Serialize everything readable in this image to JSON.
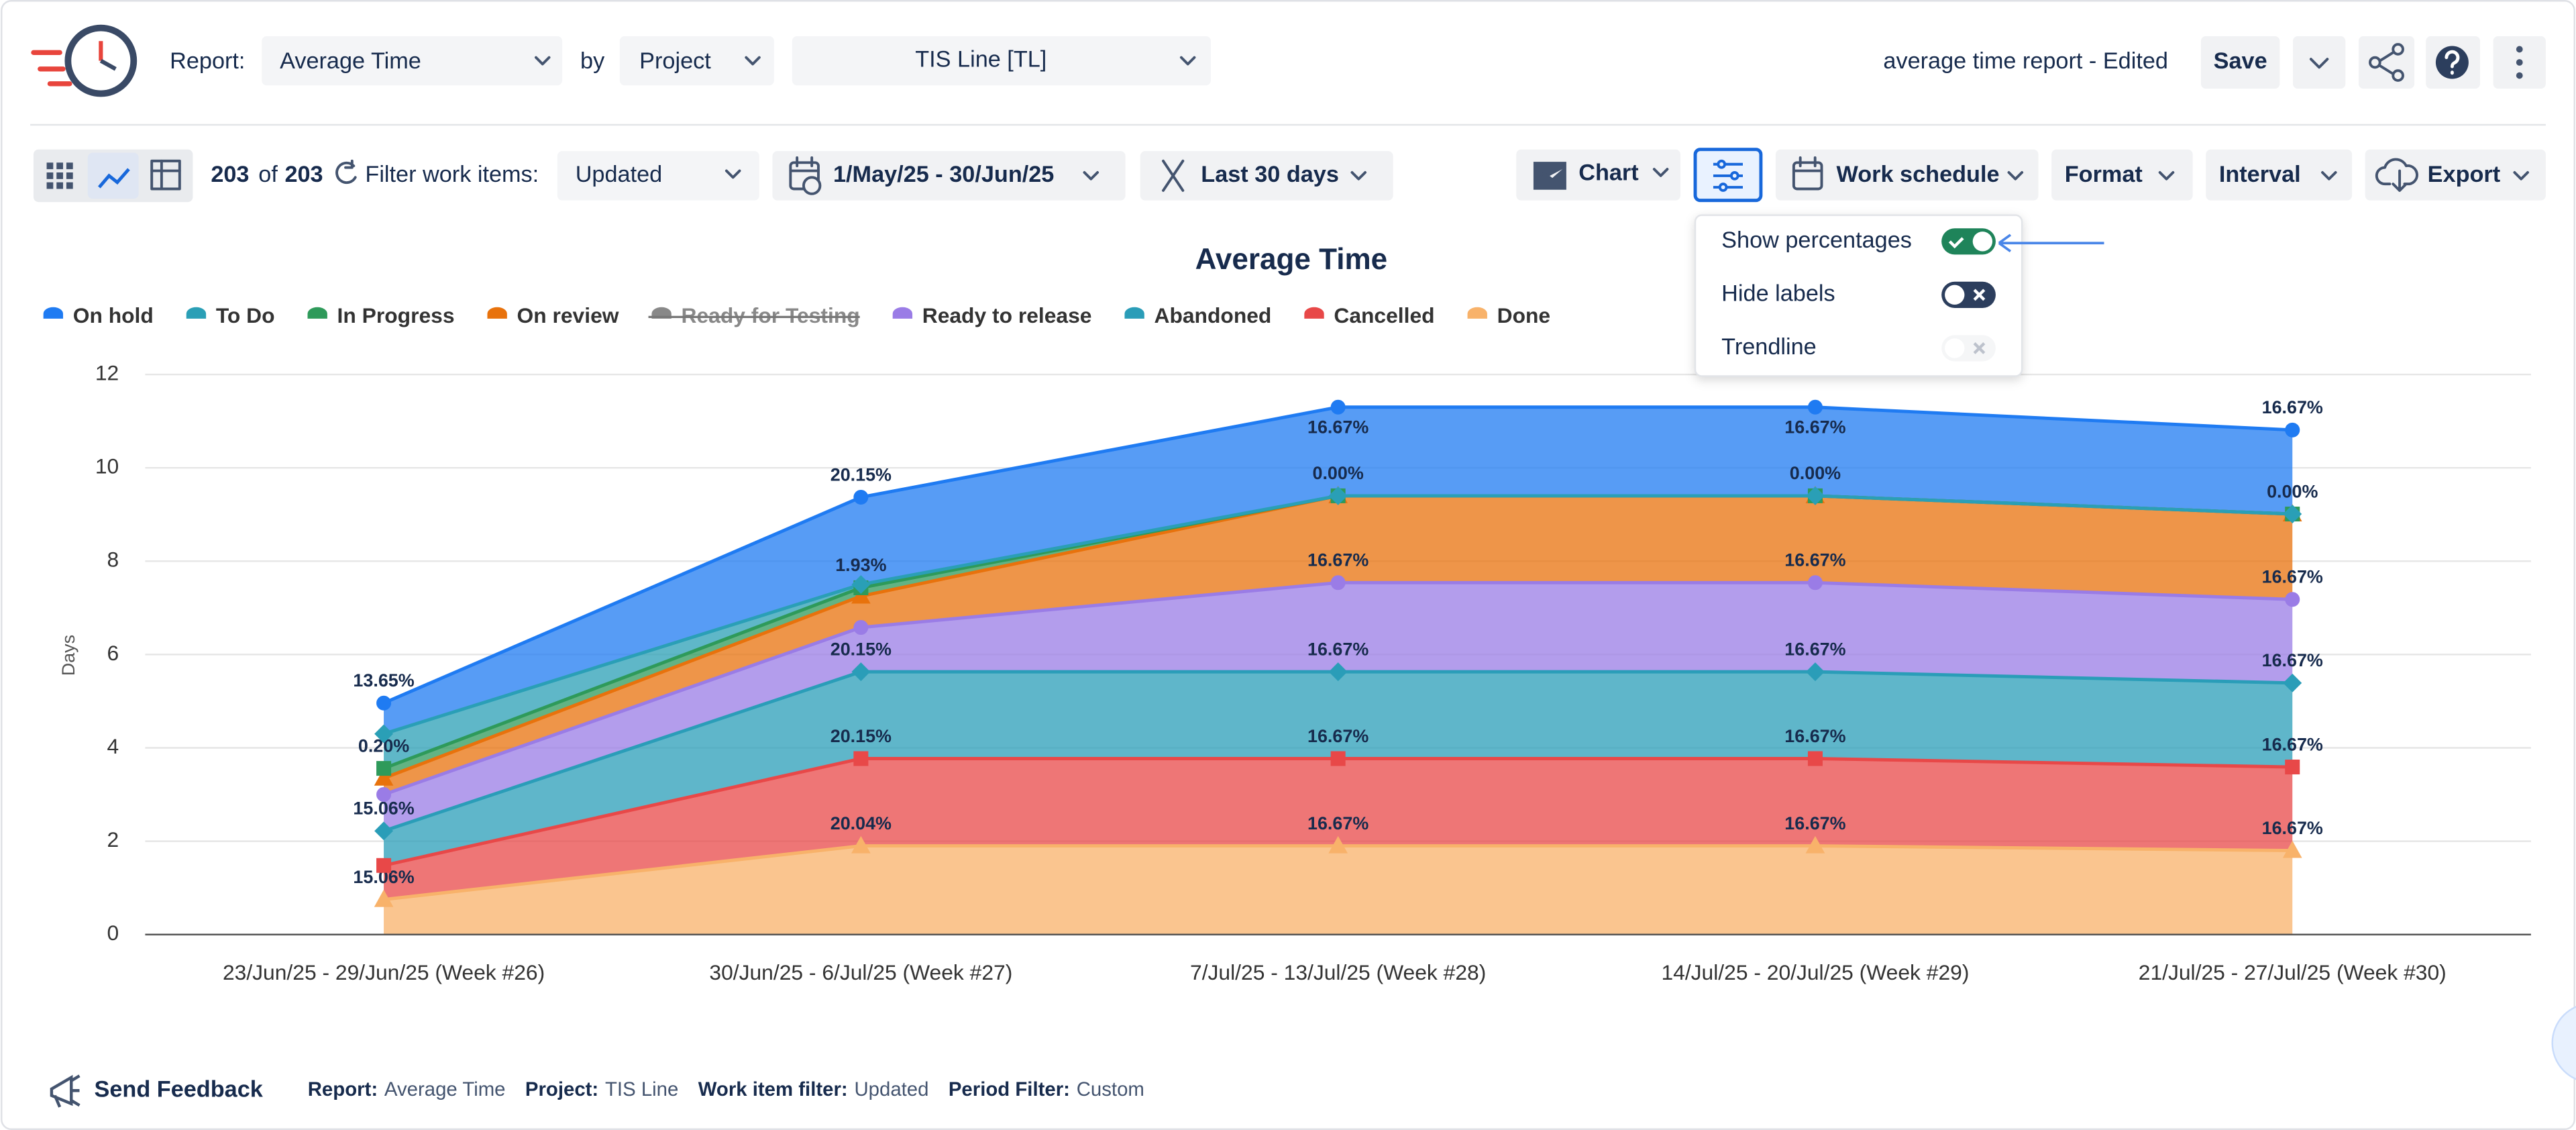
{
  "header": {
    "report_label": "Report:",
    "report": "Average Time",
    "by": "by",
    "group": "Project",
    "project": "TIS Line [TL]",
    "report_name": "average time report - Edited",
    "save": "Save"
  },
  "toolbar": {
    "count": "203",
    "of": "of",
    "total": "203",
    "filter_label": "Filter work items:",
    "filter": "Updated",
    "date_range": "1/May/25 - 30/Jun/25",
    "period": "Last 30 days",
    "chart": "Chart",
    "work_schedule": "Work schedule",
    "format": "Format",
    "interval": "Interval",
    "export": "Export"
  },
  "settings": {
    "items": [
      {
        "label": "Show percentages",
        "on": true,
        "enabled": true
      },
      {
        "label": "Hide labels",
        "on": false,
        "enabled": true
      },
      {
        "label": "Trendline",
        "on": false,
        "enabled": false
      }
    ]
  },
  "footer": {
    "feedback": "Send Feedback",
    "fields": [
      {
        "label": "Report:",
        "value": "Average Time"
      },
      {
        "label": "Project:",
        "value": "TIS Line"
      },
      {
        "label": "Work item filter:",
        "value": "Updated"
      },
      {
        "label": "Period Filter:",
        "value": "Custom"
      }
    ]
  },
  "chart_data": {
    "type": "area",
    "stacked": true,
    "title": "Average Time",
    "y_label": "Days",
    "categories": [
      "23/Jun/25 - 29/Jun/25 (Week #26)",
      "30/Jun/25 - 6/Jul/25 (Week #27)",
      "7/Jul/25 - 13/Jul/25 (Week #28)",
      "14/Jul/25 - 20/Jul/25 (Week #29)",
      "21/Jul/25 - 27/Jul/25 (Week #30)"
    ],
    "ylim": [
      0,
      12
    ],
    "yticks": [
      0,
      2,
      4,
      6,
      8,
      10,
      12
    ],
    "grid": true,
    "legend": "top-left",
    "series": [
      {
        "name": "On hold",
        "color": "#1f7bf2",
        "marker": "circle",
        "values": [
          0.66,
          1.87,
          1.9,
          1.9,
          1.8
        ],
        "percent_labels": [
          "13.65%",
          "20.15%",
          "16.67%",
          "16.67%",
          "16.67%"
        ]
      },
      {
        "name": "To Do",
        "color": "#2a9fb6",
        "marker": "diamond",
        "values": [
          0.74,
          0.07,
          0,
          0,
          0
        ],
        "percent_labels": [
          null,
          null,
          null,
          null,
          null
        ]
      },
      {
        "name": "In Progress",
        "color": "#2e9a5a",
        "marker": "square",
        "values": [
          0.21,
          0.18,
          0,
          0,
          0
        ],
        "percent_labels": [
          "0.20%",
          "1.93%",
          "0.00%",
          "0.00%",
          "0.00%"
        ]
      },
      {
        "name": "On review",
        "color": "#e8720c",
        "marker": "triangle",
        "values": [
          0.35,
          0.67,
          1.86,
          1.86,
          1.83
        ],
        "percent_labels": [
          null,
          null,
          null,
          null,
          null
        ]
      },
      {
        "name": "Ready for Testing",
        "color": "#666666",
        "marker": "square",
        "hidden": true,
        "values": [
          null,
          null,
          null,
          null,
          null
        ],
        "percent_labels": [
          null,
          null,
          null,
          null,
          null
        ]
      },
      {
        "name": "Ready to release",
        "color": "#9a7ce6",
        "marker": "circle",
        "values": [
          0.78,
          0.95,
          1.91,
          1.91,
          1.79
        ],
        "percent_labels": [
          null,
          null,
          "16.67%",
          "16.67%",
          "16.67%"
        ]
      },
      {
        "name": "Abandoned",
        "color": "#2a9db8",
        "marker": "diamond",
        "values": [
          0.74,
          1.86,
          1.86,
          1.86,
          1.8
        ],
        "percent_labels": [
          "15.06%",
          "20.15%",
          "16.67%",
          "16.67%",
          "16.67%"
        ]
      },
      {
        "name": "Cancelled",
        "color": "#e84848",
        "marker": "square",
        "values": [
          0.73,
          1.87,
          1.87,
          1.87,
          1.79
        ],
        "percent_labels": [
          null,
          "20.15%",
          "16.67%",
          "16.67%",
          "16.67%"
        ]
      },
      {
        "name": "Done",
        "color": "#f8b26a",
        "marker": "triangle",
        "values": [
          0.75,
          1.9,
          1.9,
          1.9,
          1.8
        ],
        "percent_labels": [
          "15.06%",
          "20.04%",
          "16.67%",
          "16.67%",
          "16.67%"
        ]
      }
    ]
  }
}
